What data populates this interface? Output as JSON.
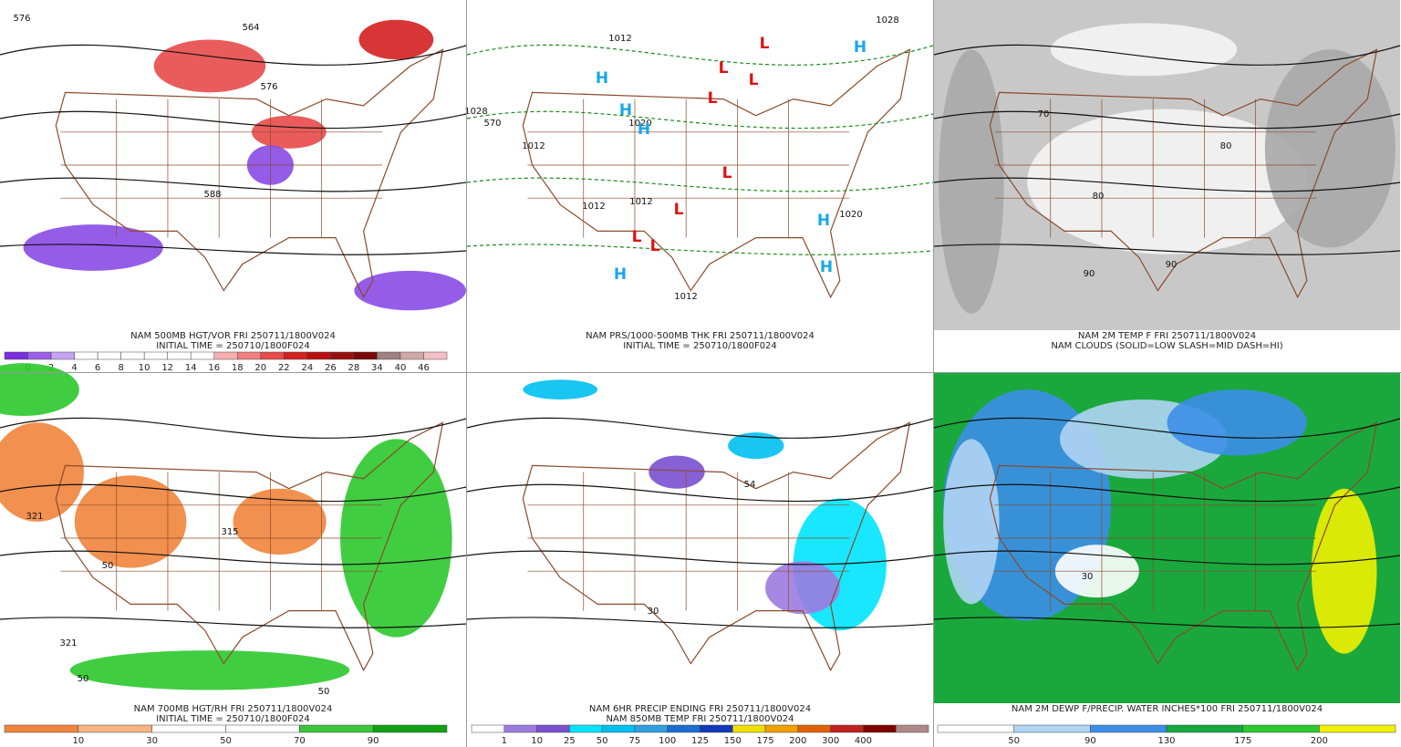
{
  "panels": [
    {
      "captions": [
        "NAM 500MB HGT/VOR FRI 250711/1800V024",
        "INITIAL TIME = 250710/1800F024"
      ],
      "colorbar": {
        "labels": [
          "0",
          "2",
          "4",
          "6",
          "8",
          "10",
          "12",
          "14",
          "16",
          "18",
          "20",
          "22",
          "24",
          "26",
          "28",
          "34",
          "40",
          "46"
        ],
        "colors": [
          "#7b2ee0",
          "#9a5ee8",
          "#c4a4f2",
          "#ffffff",
          "#ffffff",
          "#ffffff",
          "#ffffff",
          "#ffffff",
          "#ffffff",
          "#f7b0b0",
          "#f08080",
          "#e84a4a",
          "#d42020",
          "#b81010",
          "#961010",
          "#7a0808",
          "#a08080",
          "#d0a8a8",
          "#f4c0c8"
        ]
      },
      "labels": [
        "576",
        "564",
        "576",
        "588"
      ]
    },
    {
      "captions": [
        "NAM PRS/1000-500MB THK FRI 250711/1800V024",
        "INITIAL TIME = 250710/1800F024"
      ],
      "labels": [
        "1012",
        "1028",
        "1020",
        "1012",
        "1012",
        "1012",
        "1012",
        "1020",
        "1028",
        "570",
        "H",
        "H",
        "H",
        "H",
        "H",
        "H",
        "H",
        "L",
        "L",
        "L",
        "L",
        "L",
        "L",
        "L",
        "L"
      ]
    },
    {
      "captions": [
        "NAM 2M TEMP F FRI 250711/1800V024",
        "NAM CLOUDS (SOLID=LOW SLASH=MID DASH=HI)"
      ],
      "labels": [
        "70",
        "80",
        "90",
        "80",
        "90"
      ]
    },
    {
      "captions": [
        "NAM 700MB HGT/RH FRI 250711/1800V024",
        "INITIAL TIME = 250710/1800F024"
      ],
      "colorbar": {
        "labels": [
          "10",
          "30",
          "50",
          "70",
          "90"
        ],
        "colors": [
          "#f0843c",
          "#f8b480",
          "#ffffff",
          "#ffffff",
          "#3cc43c",
          "#10a010"
        ]
      },
      "labels": [
        "321",
        "315",
        "321",
        "50",
        "50",
        "50"
      ]
    },
    {
      "captions": [
        "NAM 6HR PRECIP ENDING FRI 250711/1800V024",
        "NAM 850MB TEMP FRI 250711/1800V024"
      ],
      "colorbar": {
        "labels": [
          "1",
          "10",
          "25",
          "50",
          "75",
          "100",
          "125",
          "150",
          "175",
          "200",
          "300",
          "400"
        ],
        "colors": [
          "#ffffff",
          "#9c7be0",
          "#7a4fd0",
          "#00e4ff",
          "#00c0f0",
          "#30a0e0",
          "#1a6cd0",
          "#1038b8",
          "#f0e000",
          "#f0a000",
          "#e06000",
          "#c02020",
          "#800000",
          "#b08888"
        ]
      },
      "labels": [
        "30",
        "54"
      ]
    },
    {
      "captions": [
        "NAM 2M DEWP F/PRECIP. WATER INCHES*100 FRI 250711/1800V024"
      ],
      "colorbar": {
        "labels": [
          "50",
          "90",
          "130",
          "175",
          "200"
        ],
        "colors": [
          "#ffffff",
          "#b0d4f4",
          "#3c8ee8",
          "#14a83c",
          "#2cc82c",
          "#f0f000"
        ]
      },
      "labels": [
        "30"
      ]
    }
  ]
}
